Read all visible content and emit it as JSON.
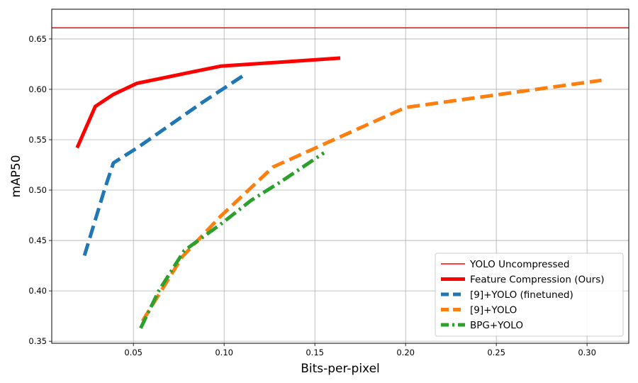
{
  "chart_data": {
    "type": "line",
    "xlabel": "Bits-per-pixel",
    "ylabel": "mAP50",
    "xlim": [
      0.005,
      0.323
    ],
    "ylim": [
      0.348,
      0.6795
    ],
    "xticks": [
      0.05,
      0.1,
      0.15,
      0.2,
      0.25,
      0.3
    ],
    "xtick_labels": [
      "0.05",
      "0.10",
      "0.15",
      "0.20",
      "0.25",
      "0.30"
    ],
    "yticks": [
      0.35,
      0.4,
      0.45,
      0.5,
      0.55,
      0.6,
      0.65
    ],
    "ytick_labels": [
      "0.35",
      "0.40",
      "0.45",
      "0.50",
      "0.55",
      "0.60",
      "0.65"
    ],
    "grid": true,
    "legend_position": "bottom-right",
    "reference_line": {
      "name": "YOLO Uncompressed",
      "y": 0.661,
      "color": "#ff0000"
    },
    "series": [
      {
        "name": "Feature Compression (Ours)",
        "color": "#ff0000",
        "style": "solid",
        "x": [
          0.019,
          0.029,
          0.039,
          0.052,
          0.098,
          0.164
        ],
        "y": [
          0.542,
          0.583,
          0.595,
          0.606,
          0.623,
          0.631
        ]
      },
      {
        "name": "[9]+YOLO (finetuned)",
        "color": "#1f77b4",
        "style": "dashed",
        "x": [
          0.023,
          0.034,
          0.039,
          0.053,
          0.088,
          0.11
        ],
        "y": [
          0.435,
          0.5,
          0.527,
          0.543,
          0.587,
          0.613
        ]
      },
      {
        "name": "[9]+YOLO",
        "color": "#ff7f0e",
        "style": "dashed",
        "x": [
          0.055,
          0.077,
          0.098,
          0.127,
          0.2,
          0.308
        ],
        "y": [
          0.37,
          0.434,
          0.474,
          0.523,
          0.582,
          0.609
        ]
      },
      {
        "name": "BPG+YOLO",
        "color": "#2ca02c",
        "style": "dashdot",
        "x": [
          0.054,
          0.064,
          0.078,
          0.098,
          0.115,
          0.131,
          0.155
        ],
        "y": [
          0.363,
          0.4,
          0.44,
          0.466,
          0.49,
          0.508,
          0.537
        ]
      }
    ]
  }
}
